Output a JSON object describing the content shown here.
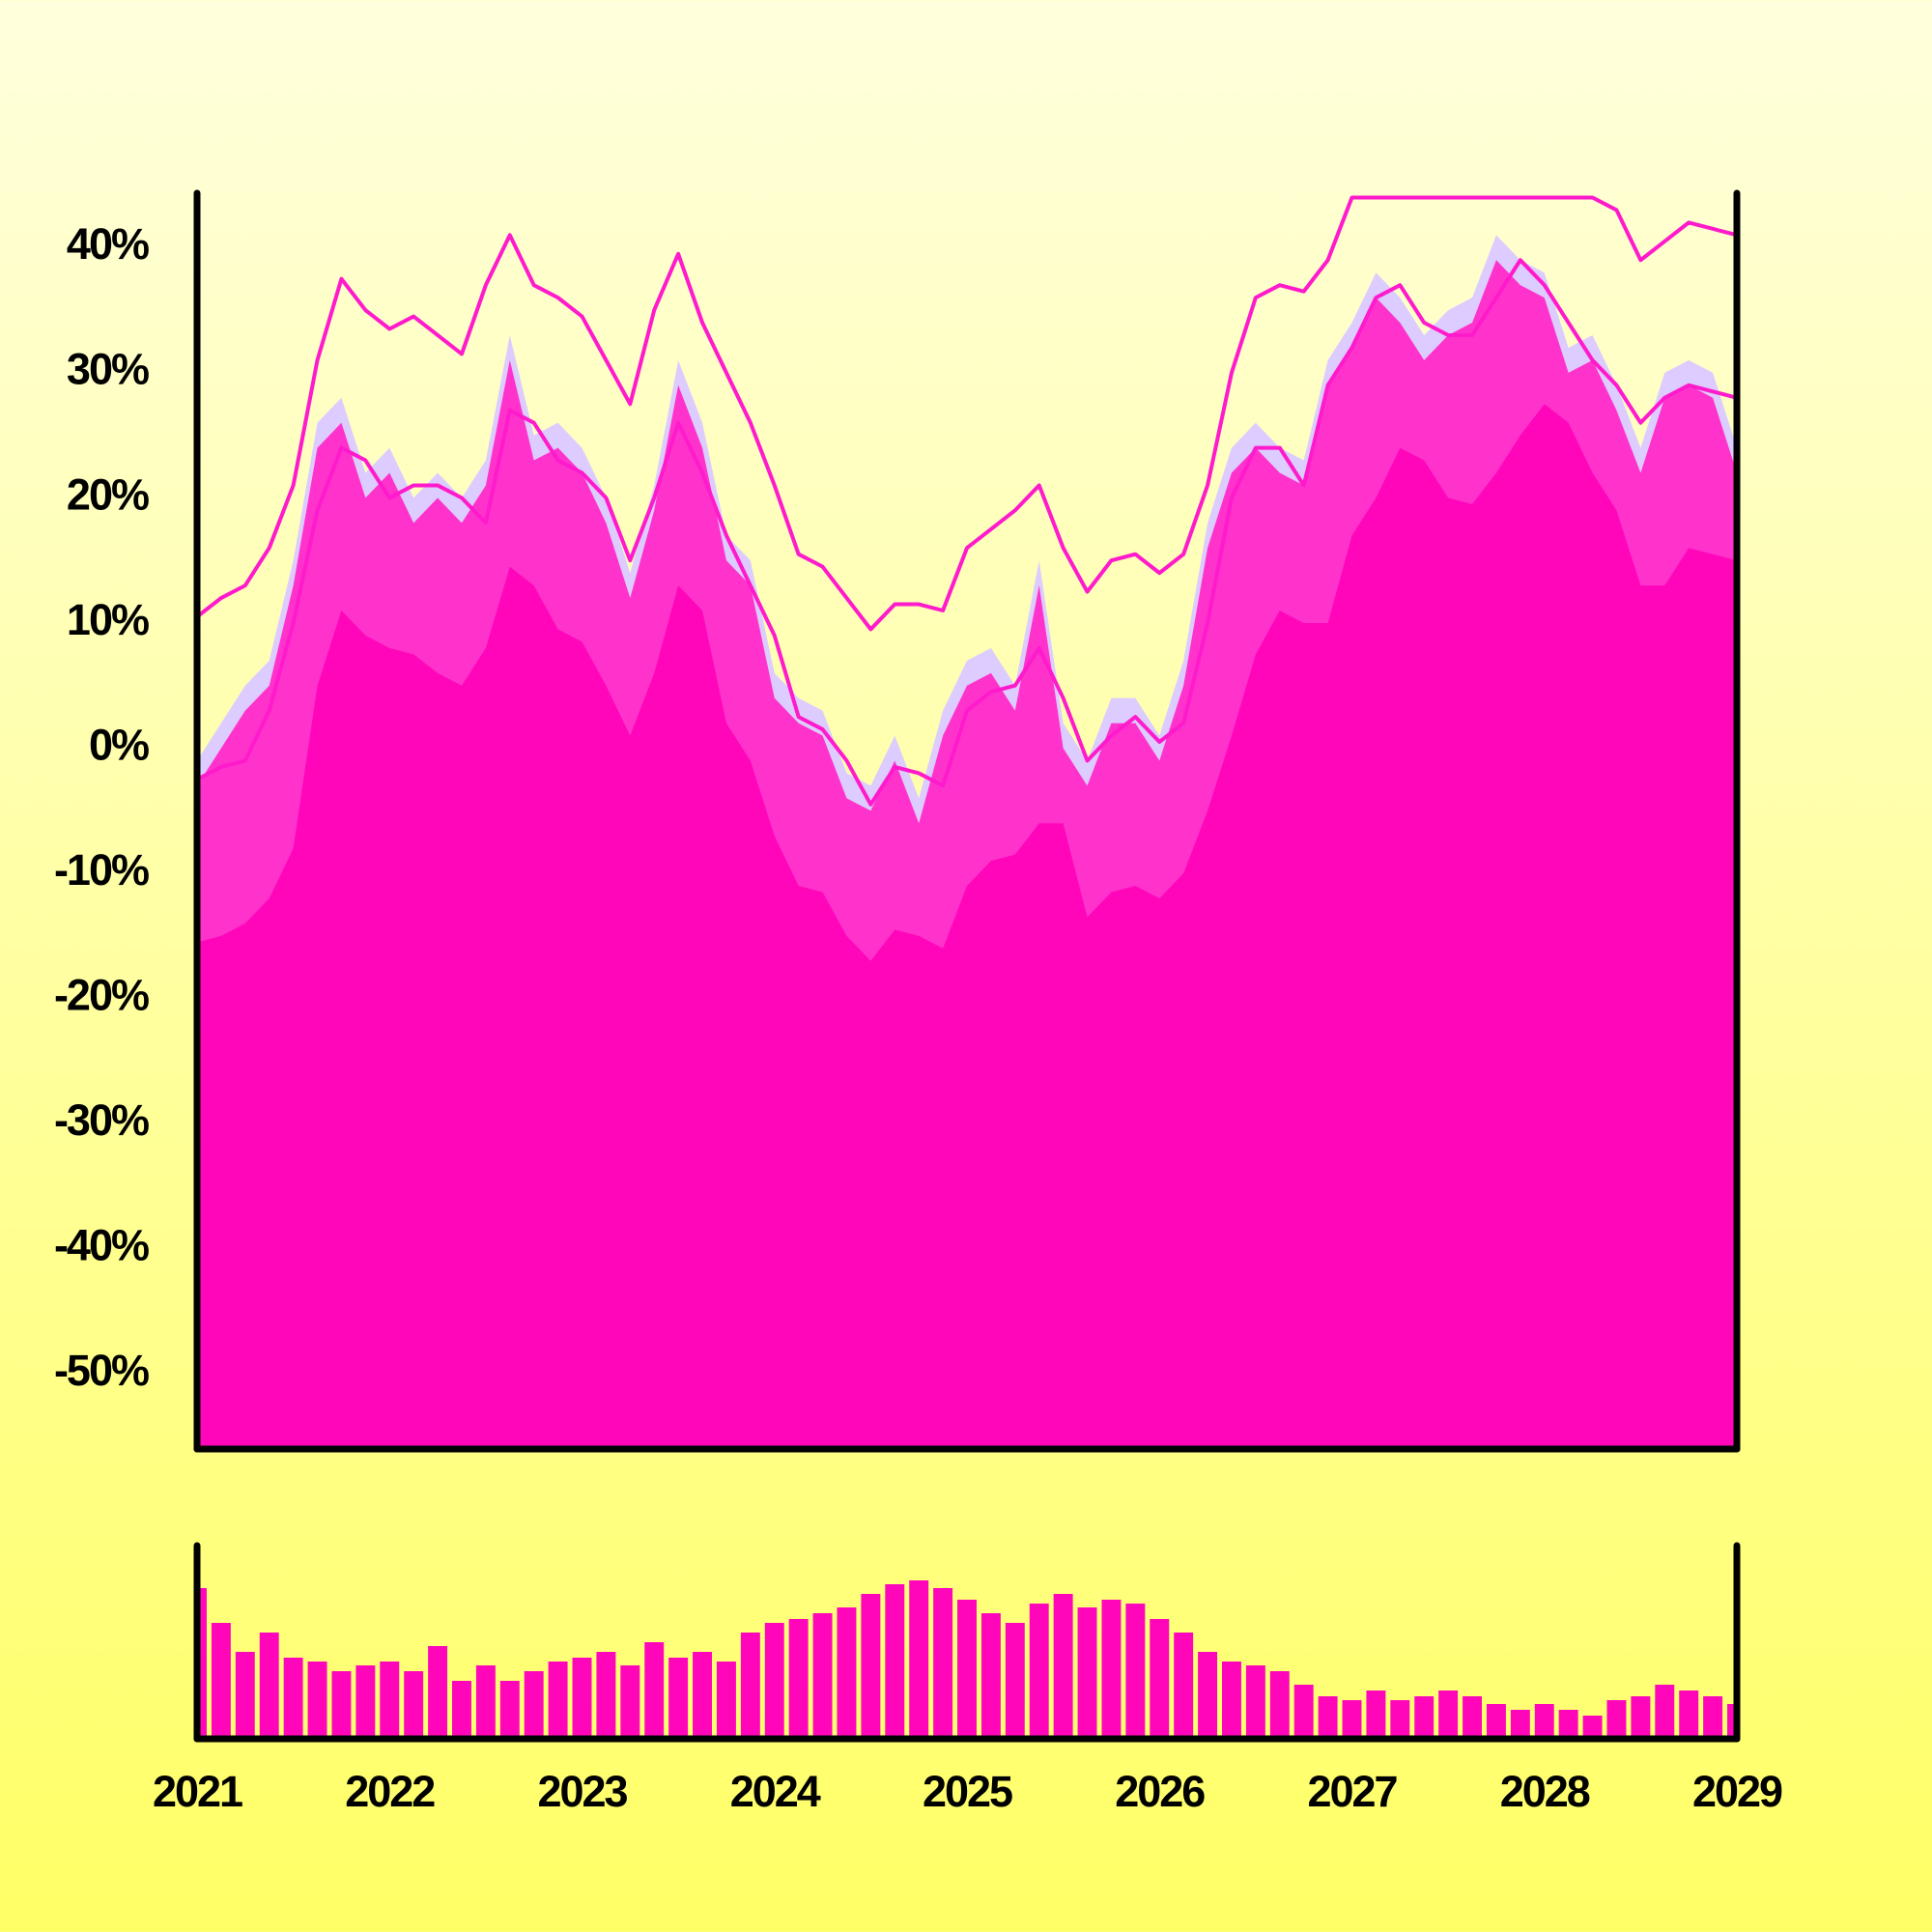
{
  "chart_data": [
    {
      "type": "area",
      "x": [
        2021,
        2021.125,
        2021.25,
        2021.375,
        2021.5,
        2021.625,
        2021.75,
        2021.875,
        2022,
        2022.125,
        2022.25,
        2022.375,
        2022.5,
        2022.625,
        2022.75,
        2022.875,
        2023,
        2023.125,
        2023.25,
        2023.375,
        2023.5,
        2023.625,
        2023.75,
        2023.875,
        2024,
        2024.125,
        2024.25,
        2024.375,
        2024.5,
        2024.625,
        2024.75,
        2024.875,
        2025,
        2025.125,
        2025.25,
        2025.375,
        2025.5,
        2025.625,
        2025.75,
        2025.875,
        2026,
        2026.125,
        2026.25,
        2026.375,
        2026.5,
        2026.625,
        2026.75,
        2026.875,
        2027,
        2027.125,
        2027.25,
        2027.375,
        2027.5,
        2027.625,
        2027.75,
        2027.875,
        2028,
        2028.125,
        2028.25,
        2028.375,
        2028.5,
        2028.625,
        2028.75,
        2028.875,
        2029
      ],
      "xlim": [
        2021,
        2029
      ],
      "xticks": [
        2021,
        2022,
        2023,
        2024,
        2025,
        2026,
        2027,
        2028,
        2029
      ],
      "ylim": [
        -56,
        44.5
      ],
      "yticks": [
        {
          "value": 40,
          "label": "40%"
        },
        {
          "value": 30,
          "label": "30%"
        },
        {
          "value": 20,
          "label": "20%"
        },
        {
          "value": 10,
          "label": "10%"
        },
        {
          "value": 0,
          "label": "0%"
        },
        {
          "value": -10,
          "label": "-10%"
        },
        {
          "value": -20,
          "label": "-20%"
        },
        {
          "value": -30,
          "label": "-30%"
        },
        {
          "value": -40,
          "label": "-40%"
        },
        {
          "value": -50,
          "label": "-50%"
        }
      ],
      "series": [
        {
          "kind": "area",
          "color": "#dcccff",
          "values": [
            -1,
            2,
            5,
            7,
            15,
            26,
            28,
            22,
            24,
            20,
            22,
            20,
            23,
            33,
            25,
            26,
            24,
            20,
            14,
            21,
            31,
            26,
            17,
            15,
            6,
            4,
            3,
            -2,
            -3,
            1,
            -4,
            3,
            7,
            8,
            5,
            15,
            2,
            -1,
            4,
            4,
            1,
            7,
            18,
            24,
            26,
            24,
            23,
            31,
            34,
            38,
            36,
            33,
            35,
            36,
            41,
            39,
            38,
            32,
            33,
            29,
            24,
            30,
            31,
            30,
            24
          ]
        },
        {
          "kind": "area",
          "color": "#ff33cc",
          "values": [
            -3,
            0,
            3,
            5,
            13,
            24,
            26,
            20,
            22,
            18,
            20,
            18,
            21,
            31,
            23,
            24,
            22,
            18,
            12,
            19,
            29,
            24,
            15,
            13,
            4,
            2,
            1,
            -4,
            -5,
            -1,
            -6,
            1,
            5,
            6,
            3,
            13,
            0,
            -3,
            2,
            2,
            -1,
            5,
            16,
            22,
            24,
            22,
            21,
            29,
            32,
            36,
            34,
            31,
            33,
            34,
            39,
            37,
            36,
            30,
            31,
            27,
            22,
            28,
            29,
            28,
            22
          ]
        },
        {
          "kind": "area",
          "color": "#ff06bb",
          "values": [
            -15.5,
            -15,
            -14,
            -12,
            -8,
            5,
            11,
            9,
            8,
            7.5,
            6,
            5,
            8,
            14.5,
            13,
            9.5,
            8.5,
            5,
            1,
            6,
            13,
            11,
            2,
            -1,
            -7,
            -11,
            -11.5,
            -15,
            -17,
            -14.5,
            -15,
            -16,
            -11,
            -9,
            -8.5,
            -6,
            -6,
            -13.5,
            -11.5,
            -11,
            -12,
            -10,
            -5,
            1,
            7.5,
            11,
            10,
            10,
            17,
            20,
            24,
            23,
            20,
            19.5,
            22,
            25,
            27.5,
            26,
            22,
            19,
            13,
            13,
            16,
            15.5,
            15
          ]
        },
        {
          "kind": "line",
          "color": "#ff1acc",
          "values": [
            -2.5,
            -1.5,
            -1,
            3,
            10,
            19,
            24,
            23,
            20,
            21,
            21,
            20,
            18,
            27,
            26,
            23,
            22,
            20,
            15,
            20,
            26,
            22,
            17,
            13,
            9,
            2.5,
            1.5,
            -1,
            -4.5,
            -1.5,
            -2,
            -3,
            3,
            4.5,
            5,
            8,
            4,
            -1,
            1,
            2.5,
            0.5,
            2,
            10,
            20,
            24,
            24,
            21,
            29,
            32,
            36,
            37,
            34,
            33,
            33,
            36,
            39,
            37,
            34,
            31,
            29,
            26,
            28,
            29,
            28.5,
            28
          ]
        },
        {
          "kind": "line",
          "color": "#ff1acc",
          "values": [
            10.5,
            12,
            13,
            16,
            21,
            31,
            37.5,
            35,
            33.5,
            34.5,
            33,
            31.5,
            37,
            41,
            37,
            36,
            34.5,
            31,
            27.5,
            35,
            39.5,
            34,
            30,
            26,
            21,
            15.5,
            14.5,
            12,
            9.5,
            11.5,
            11.5,
            11,
            16,
            17.5,
            19,
            21,
            16,
            12.5,
            15,
            15.5,
            14,
            15.5,
            21,
            30,
            36,
            37,
            36.5,
            39,
            44,
            44,
            44,
            44,
            44,
            44,
            44,
            44,
            44,
            44,
            44,
            43,
            39,
            40.5,
            42,
            41.5,
            41
          ]
        }
      ]
    },
    {
      "type": "bar",
      "color": "#ff06bb",
      "ylim": [
        0,
        100
      ],
      "values": [
        78,
        60,
        45,
        55,
        42,
        40,
        35,
        38,
        40,
        35,
        48,
        30,
        38,
        30,
        35,
        40,
        42,
        45,
        38,
        50,
        42,
        45,
        40,
        55,
        60,
        62,
        65,
        68,
        75,
        80,
        82,
        78,
        72,
        65,
        60,
        70,
        75,
        68,
        72,
        70,
        62,
        55,
        45,
        40,
        38,
        35,
        28,
        22,
        20,
        25,
        20,
        22,
        25,
        22,
        18,
        15,
        18,
        15,
        12,
        20,
        22,
        28,
        25,
        22,
        18
      ]
    }
  ]
}
